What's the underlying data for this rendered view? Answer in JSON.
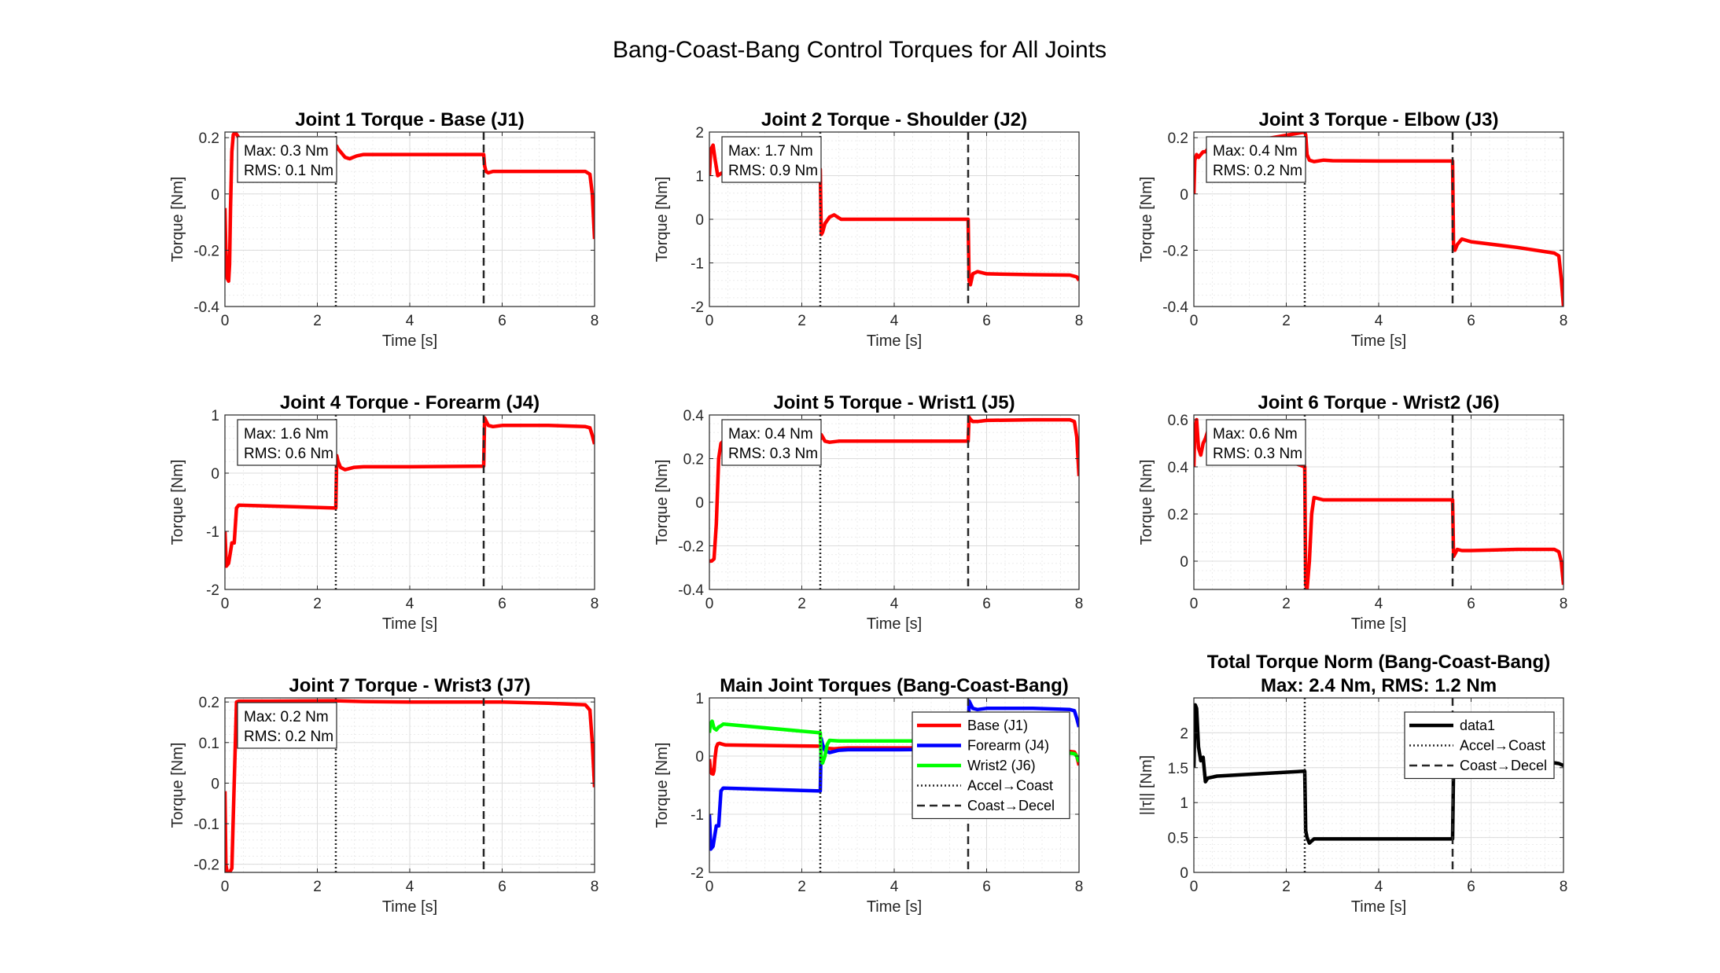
{
  "figure": {
    "title": "Bang-Coast-Bang Control Torques for All Joints"
  },
  "colors": {
    "joint_line": "#ff0000",
    "base_j1": "#ff0000",
    "forearm_j4": "#0000ff",
    "wrist2_j6": "#00ff00",
    "norm_line": "#000000",
    "phase_line": "#262626",
    "grid": "#dcdcdc"
  },
  "chart_data": [
    {
      "type": "line",
      "title": "Joint 1 Torque - Base (J1)",
      "xlabel": "Time [s]",
      "ylabel": "Torque [Nm]",
      "xlim": [
        0,
        8
      ],
      "ylim": [
        -0.4,
        0.22
      ],
      "xticks": [
        0,
        2,
        4,
        6,
        8
      ],
      "yticks": [
        -0.4,
        -0.2,
        0,
        0.2
      ],
      "grid": true,
      "phase_lines": [
        {
          "x": 2.4,
          "style": "dotted"
        },
        {
          "x": 5.6,
          "style": "dashed"
        }
      ],
      "stats": [
        "Max: 0.3 Nm",
        "RMS: 0.1 Nm"
      ],
      "series": [
        {
          "color": "#ff0000",
          "x": [
            0,
            0.02,
            0.05,
            0.08,
            0.1,
            0.12,
            0.15,
            0.18,
            0.22,
            0.26,
            0.3,
            0.35,
            2.4,
            2.42,
            2.45,
            2.5,
            2.6,
            2.7,
            2.85,
            3.0,
            4.0,
            5.6,
            5.62,
            5.65,
            5.7,
            5.8,
            5.9,
            6.1,
            7.0,
            7.8,
            7.9,
            7.95,
            8.0
          ],
          "y": [
            -0.05,
            -0.2,
            -0.3,
            -0.31,
            -0.25,
            -0.05,
            0.15,
            0.21,
            0.22,
            0.21,
            0.2,
            0.19,
            0.17,
            0.17,
            0.16,
            0.15,
            0.13,
            0.125,
            0.135,
            0.14,
            0.14,
            0.14,
            0.1,
            0.08,
            0.075,
            0.08,
            0.08,
            0.08,
            0.08,
            0.08,
            0.07,
            0.0,
            -0.16
          ]
        }
      ]
    },
    {
      "type": "line",
      "title": "Joint 2 Torque - Shoulder (J2)",
      "xlabel": "Time [s]",
      "ylabel": "Torque [Nm]",
      "xlim": [
        0,
        8
      ],
      "ylim": [
        -2,
        2
      ],
      "xticks": [
        0,
        2,
        4,
        6,
        8
      ],
      "yticks": [
        -2,
        -1,
        0,
        1,
        2
      ],
      "grid": true,
      "phase_lines": [
        {
          "x": 2.4,
          "style": "dotted"
        },
        {
          "x": 5.6,
          "style": "dashed"
        }
      ],
      "stats": [
        "Max: 1.7 Nm",
        "RMS: 0.9 Nm"
      ],
      "series": [
        {
          "color": "#ff0000",
          "x": [
            0,
            0.03,
            0.08,
            0.12,
            0.18,
            0.25,
            0.35,
            2.4,
            2.42,
            2.45,
            2.5,
            2.6,
            2.7,
            2.85,
            3.0,
            4.0,
            5.6,
            5.62,
            5.65,
            5.7,
            5.8,
            6.0,
            7.0,
            7.8,
            7.95,
            8.0
          ],
          "y": [
            1.0,
            1.6,
            1.7,
            1.4,
            1.0,
            1.05,
            1.1,
            1.15,
            -0.35,
            -0.3,
            -0.1,
            0.05,
            0.1,
            0.0,
            0.0,
            0.0,
            0.0,
            -1.4,
            -1.5,
            -1.25,
            -1.2,
            -1.25,
            -1.27,
            -1.28,
            -1.32,
            -1.4
          ]
        }
      ]
    },
    {
      "type": "line",
      "title": "Joint 3 Torque - Elbow (J3)",
      "xlabel": "Time [s]",
      "ylabel": "Torque [Nm]",
      "xlim": [
        0,
        8
      ],
      "ylim": [
        -0.4,
        0.22
      ],
      "xticks": [
        0,
        2,
        4,
        6,
        8
      ],
      "yticks": [
        -0.4,
        -0.2,
        0,
        0.2
      ],
      "grid": true,
      "phase_lines": [
        {
          "x": 2.4,
          "style": "dotted"
        },
        {
          "x": 5.6,
          "style": "dashed"
        }
      ],
      "stats": [
        "Max: 0.4 Nm",
        "RMS: 0.2 Nm"
      ],
      "series": [
        {
          "color": "#ff0000",
          "x": [
            0,
            0.02,
            0.06,
            0.1,
            0.15,
            0.2,
            0.25,
            0.3,
            2.4,
            2.42,
            2.45,
            2.5,
            2.6,
            2.8,
            3.0,
            4.0,
            5.6,
            5.62,
            5.65,
            5.7,
            5.8,
            6.0,
            7.0,
            7.8,
            7.9,
            7.95,
            8.0
          ],
          "y": [
            0.0,
            0.12,
            0.14,
            0.13,
            0.14,
            0.15,
            0.15,
            0.16,
            0.22,
            0.21,
            0.14,
            0.12,
            0.115,
            0.12,
            0.118,
            0.117,
            0.117,
            -0.19,
            -0.2,
            -0.18,
            -0.16,
            -0.17,
            -0.19,
            -0.21,
            -0.22,
            -0.3,
            -0.4
          ]
        }
      ]
    },
    {
      "type": "line",
      "title": "Joint 4 Torque - Forearm (J4)",
      "xlabel": "Time [s]",
      "ylabel": "Torque [Nm]",
      "xlim": [
        0,
        8
      ],
      "ylim": [
        -2,
        1
      ],
      "xticks": [
        0,
        2,
        4,
        6,
        8
      ],
      "yticks": [
        -2,
        -1,
        0,
        1
      ],
      "grid": true,
      "phase_lines": [
        {
          "x": 2.4,
          "style": "dotted"
        },
        {
          "x": 5.6,
          "style": "dashed"
        }
      ],
      "stats": [
        "Max: 1.6 Nm",
        "RMS: 0.6 Nm"
      ],
      "series": [
        {
          "color": "#ff0000",
          "x": [
            0,
            0.03,
            0.08,
            0.12,
            0.15,
            0.2,
            0.25,
            0.3,
            2.4,
            2.42,
            2.45,
            2.5,
            2.6,
            2.8,
            3.0,
            4.0,
            5.6,
            5.62,
            5.65,
            5.7,
            5.8,
            6.0,
            7.0,
            7.8,
            7.9,
            7.95,
            8.0
          ],
          "y": [
            -1.0,
            -1.6,
            -1.55,
            -1.35,
            -1.2,
            -1.2,
            -0.6,
            -0.55,
            -0.6,
            0.3,
            0.2,
            0.1,
            0.06,
            0.1,
            0.11,
            0.11,
            0.12,
            0.95,
            0.9,
            0.82,
            0.8,
            0.82,
            0.82,
            0.8,
            0.78,
            0.65,
            0.5
          ]
        }
      ]
    },
    {
      "type": "line",
      "title": "Joint 5 Torque - Wrist1 (J5)",
      "xlabel": "Time [s]",
      "ylabel": "Torque [Nm]",
      "xlim": [
        0,
        8
      ],
      "ylim": [
        -0.4,
        0.4
      ],
      "xticks": [
        0,
        2,
        4,
        6,
        8
      ],
      "yticks": [
        -0.4,
        -0.2,
        0,
        0.2,
        0.4
      ],
      "grid": true,
      "phase_lines": [
        {
          "x": 2.4,
          "style": "dotted"
        },
        {
          "x": 5.6,
          "style": "dashed"
        }
      ],
      "stats": [
        "Max: 0.4 Nm",
        "RMS: 0.3 Nm"
      ],
      "series": [
        {
          "color": "#ff0000",
          "x": [
            0,
            0.05,
            0.1,
            0.15,
            0.2,
            0.25,
            0.3,
            2.4,
            2.42,
            2.45,
            2.5,
            2.6,
            2.8,
            3.0,
            4.0,
            5.6,
            5.62,
            5.65,
            5.7,
            5.8,
            6.0,
            7.0,
            7.8,
            7.9,
            7.95,
            8.0
          ],
          "y": [
            -0.27,
            -0.27,
            -0.26,
            -0.1,
            0.2,
            0.27,
            0.28,
            0.29,
            0.31,
            0.3,
            0.28,
            0.275,
            0.28,
            0.28,
            0.28,
            0.28,
            0.39,
            0.38,
            0.37,
            0.37,
            0.375,
            0.378,
            0.378,
            0.37,
            0.3,
            0.12
          ]
        }
      ]
    },
    {
      "type": "line",
      "title": "Joint 6 Torque - Wrist2 (J6)",
      "xlabel": "Time [s]",
      "ylabel": "Torque [Nm]",
      "xlim": [
        0,
        8
      ],
      "ylim": [
        -0.12,
        0.62
      ],
      "xticks": [
        0,
        2,
        4,
        6,
        8
      ],
      "yticks": [
        0,
        0.2,
        0.4,
        0.6
      ],
      "grid": true,
      "phase_lines": [
        {
          "x": 2.4,
          "style": "dotted"
        },
        {
          "x": 5.6,
          "style": "dashed"
        }
      ],
      "stats": [
        "Max: 0.6 Nm",
        "RMS: 0.3 Nm"
      ],
      "series": [
        {
          "color": "#ff0000",
          "x": [
            0,
            0.02,
            0.06,
            0.1,
            0.15,
            0.2,
            0.25,
            0.3,
            2.4,
            2.42,
            2.45,
            2.5,
            2.55,
            2.6,
            2.8,
            3.0,
            4.0,
            5.6,
            5.62,
            5.65,
            5.7,
            5.8,
            6.0,
            7.0,
            7.8,
            7.9,
            7.95,
            8.0
          ],
          "y": [
            0.4,
            0.55,
            0.6,
            0.48,
            0.45,
            0.5,
            0.52,
            0.55,
            0.4,
            -0.1,
            -0.12,
            0.0,
            0.2,
            0.27,
            0.26,
            0.26,
            0.26,
            0.26,
            0.02,
            0.03,
            0.05,
            0.045,
            0.045,
            0.05,
            0.05,
            0.04,
            0.0,
            -0.1
          ]
        }
      ]
    },
    {
      "type": "line",
      "title": "Joint 7 Torque - Wrist3 (J7)",
      "xlabel": "Time [s]",
      "ylabel": "Torque [Nm]",
      "xlim": [
        0,
        8
      ],
      "ylim": [
        -0.22,
        0.21
      ],
      "xticks": [
        0,
        2,
        4,
        6,
        8
      ],
      "yticks": [
        -0.2,
        -0.1,
        0,
        0.1,
        0.2
      ],
      "grid": true,
      "phase_lines": [
        {
          "x": 2.4,
          "style": "dotted"
        },
        {
          "x": 5.6,
          "style": "dashed"
        }
      ],
      "stats": [
        "Max: 0.2 Nm",
        "RMS: 0.2 Nm"
      ],
      "series": [
        {
          "color": "#ff0000",
          "x": [
            0,
            0.02,
            0.05,
            0.1,
            0.15,
            0.2,
            0.25,
            0.3,
            1.0,
            2.4,
            3.0,
            4.0,
            5.6,
            6.0,
            7.0,
            7.8,
            7.9,
            7.95,
            8.0
          ],
          "y": [
            -0.02,
            -0.2,
            -0.22,
            -0.22,
            -0.21,
            0.0,
            0.2,
            0.202,
            0.202,
            0.203,
            0.201,
            0.2,
            0.2,
            0.2,
            0.197,
            0.193,
            0.18,
            0.1,
            -0.01
          ]
        }
      ]
    },
    {
      "type": "line",
      "title": "Main Joint Torques (Bang-Coast-Bang)",
      "xlabel": "Time [s]",
      "ylabel": "Torque [Nm]",
      "xlim": [
        0,
        8
      ],
      "ylim": [
        -2,
        1
      ],
      "xticks": [
        0,
        2,
        4,
        6,
        8
      ],
      "yticks": [
        -2,
        -1,
        0,
        1
      ],
      "grid": true,
      "phase_lines": [
        {
          "x": 2.4,
          "style": "dotted"
        },
        {
          "x": 5.6,
          "style": "dashed"
        }
      ],
      "legend": {
        "placement": "top-right",
        "entries": [
          "Base (J1)",
          "Forearm (J4)",
          "Wrist2 (J6)",
          "Accel→Coast",
          "Coast→Decel"
        ]
      },
      "series": [
        {
          "name": "Base (J1)",
          "color": "#ff0000",
          "x": [
            0,
            0.02,
            0.05,
            0.08,
            0.1,
            0.12,
            0.15,
            0.18,
            0.22,
            0.26,
            0.3,
            0.35,
            2.4,
            2.42,
            2.45,
            2.5,
            2.6,
            2.7,
            2.85,
            3.0,
            4.0,
            5.6,
            5.62,
            5.65,
            5.7,
            5.8,
            5.9,
            6.1,
            7.0,
            7.8,
            7.9,
            7.95,
            8.0
          ],
          "y": [
            -0.05,
            -0.2,
            -0.3,
            -0.31,
            -0.25,
            -0.05,
            0.15,
            0.21,
            0.22,
            0.21,
            0.2,
            0.19,
            0.17,
            0.17,
            0.16,
            0.15,
            0.13,
            0.125,
            0.135,
            0.14,
            0.14,
            0.14,
            0.1,
            0.08,
            0.075,
            0.08,
            0.08,
            0.08,
            0.08,
            0.08,
            0.07,
            0.0,
            -0.16
          ]
        },
        {
          "name": "Forearm (J4)",
          "color": "#0000ff",
          "x": [
            0,
            0.03,
            0.08,
            0.12,
            0.15,
            0.2,
            0.25,
            0.3,
            2.4,
            2.42,
            2.45,
            2.5,
            2.6,
            2.8,
            3.0,
            4.0,
            5.6,
            5.62,
            5.65,
            5.7,
            5.8,
            6.0,
            7.0,
            7.8,
            7.9,
            7.95,
            8.0
          ],
          "y": [
            -1.0,
            -1.6,
            -1.55,
            -1.35,
            -1.2,
            -1.2,
            -0.6,
            -0.55,
            -0.6,
            0.3,
            0.2,
            0.1,
            0.06,
            0.1,
            0.11,
            0.11,
            0.12,
            0.95,
            0.9,
            0.82,
            0.8,
            0.82,
            0.82,
            0.8,
            0.78,
            0.65,
            0.5
          ]
        },
        {
          "name": "Wrist2 (J6)",
          "color": "#00ff00",
          "x": [
            0,
            0.02,
            0.06,
            0.1,
            0.15,
            0.2,
            0.25,
            0.3,
            2.4,
            2.42,
            2.45,
            2.5,
            2.55,
            2.6,
            2.8,
            3.0,
            4.0,
            5.6,
            5.62,
            5.65,
            5.7,
            5.8,
            6.0,
            7.0,
            7.8,
            7.9,
            7.95,
            8.0
          ],
          "y": [
            0.4,
            0.55,
            0.6,
            0.48,
            0.45,
            0.5,
            0.52,
            0.55,
            0.4,
            -0.1,
            -0.12,
            0.0,
            0.2,
            0.27,
            0.26,
            0.26,
            0.26,
            0.26,
            0.02,
            0.03,
            0.05,
            0.045,
            0.045,
            0.05,
            0.05,
            0.04,
            0.0,
            -0.1
          ]
        }
      ]
    },
    {
      "type": "line",
      "title": "Total Torque Norm (Bang-Coast-Bang)",
      "subtitle": "Max: 2.4 Nm, RMS: 1.2 Nm",
      "xlabel": "Time [s]",
      "ylabel": "||τ|| [Nm]",
      "xlim": [
        0,
        8
      ],
      "ylim": [
        0,
        2.5
      ],
      "xticks": [
        0,
        2,
        4,
        6,
        8
      ],
      "yticks": [
        0,
        0.5,
        1,
        1.5,
        2
      ],
      "grid": true,
      "phase_lines": [
        {
          "x": 2.4,
          "style": "dotted"
        },
        {
          "x": 5.6,
          "style": "dashed"
        }
      ],
      "legend": {
        "placement": "top-right",
        "entries": [
          "data1",
          "Accel→Coast",
          "Coast→Decel"
        ]
      },
      "series": [
        {
          "name": "data1",
          "color": "#000000",
          "x": [
            0,
            0.03,
            0.06,
            0.1,
            0.15,
            0.2,
            0.25,
            0.3,
            0.5,
            2.4,
            2.42,
            2.45,
            2.5,
            2.55,
            2.6,
            2.7,
            3.0,
            4.0,
            5.6,
            5.62,
            5.65,
            5.7,
            6.0,
            7.0,
            7.8,
            7.9,
            8.0
          ],
          "y": [
            1.5,
            2.4,
            2.35,
            1.8,
            1.6,
            1.65,
            1.3,
            1.35,
            1.38,
            1.45,
            0.6,
            0.5,
            0.42,
            0.45,
            0.48,
            0.48,
            0.48,
            0.48,
            0.48,
            1.5,
            1.55,
            1.55,
            1.55,
            1.55,
            1.57,
            1.56,
            1.53
          ]
        }
      ]
    }
  ]
}
